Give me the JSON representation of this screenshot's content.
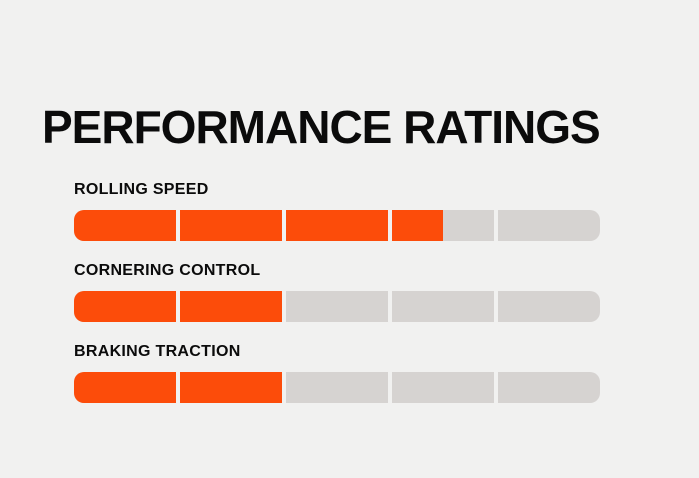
{
  "page": {
    "background_color": "#F1F1F0",
    "text_color": "#0B0B0B"
  },
  "header": {
    "title": "PERFORMANCE RATINGS"
  },
  "chart_data": {
    "type": "bar",
    "title": "PERFORMANCE RATINGS",
    "orientation": "horizontal",
    "style": "segmented-rating-bars",
    "categories": [
      "ROLLING SPEED",
      "CORNERING CONTROL",
      "BRAKING TRACTION"
    ],
    "values": [
      3.5,
      2,
      2
    ],
    "max_value": 5,
    "segments_per_bar": 5,
    "grid": false,
    "legend_position": "none",
    "colors": {
      "filled": "#FC4C0A",
      "empty": "#D6D3D1",
      "background": "#F1F1F0",
      "text": "#0B0B0B"
    }
  }
}
